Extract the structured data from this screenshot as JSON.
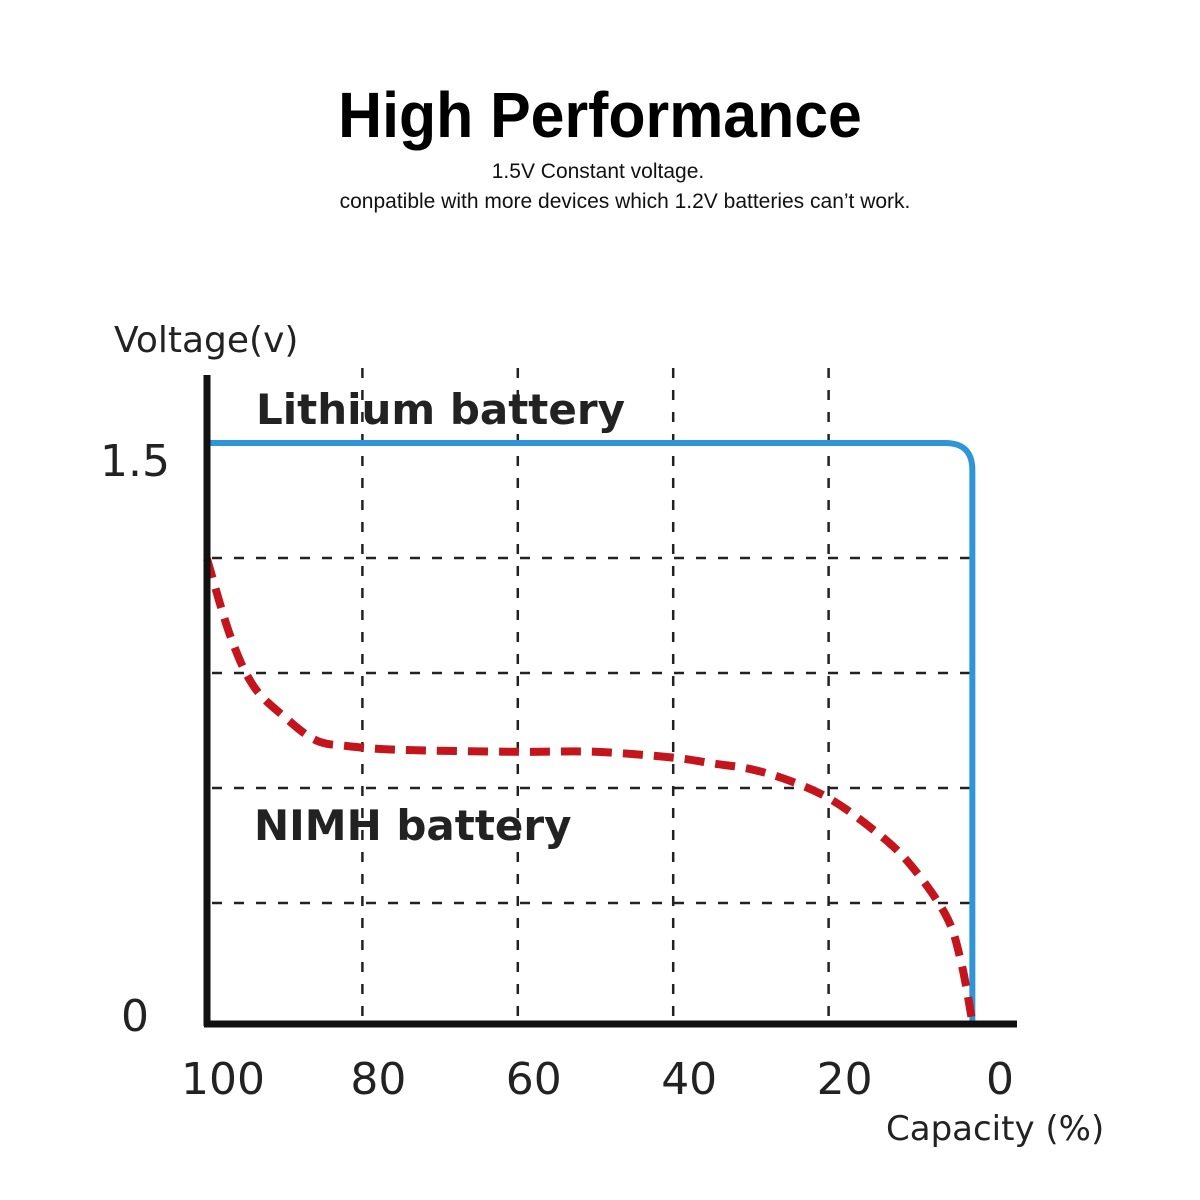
{
  "header": {
    "title": "High Performance",
    "line1": "1.5V Constant voltage.",
    "line2": "conpatible with more devices which 1.2V batteries can’t work."
  },
  "colors": {
    "lithium": "#2f95d6",
    "nimh": "#c4141c",
    "axis": "#111111",
    "grid": "#222222"
  },
  "chart_data": {
    "type": "line",
    "title": "",
    "xlabel": "Capacity (%)",
    "ylabel": "Voltage(v)",
    "x_ticks": [
      "100",
      "80",
      "60",
      "40",
      "20",
      "0"
    ],
    "y_ticks": [
      "1.5",
      "0"
    ],
    "xlim": [
      100,
      0
    ],
    "ylim": [
      0,
      1.5
    ],
    "grid": true,
    "series": [
      {
        "name": "Lithium battery",
        "style": "solid",
        "x": [
          100,
          80,
          60,
          40,
          20,
          5,
          3,
          2,
          1.5,
          1.5
        ],
        "y": [
          1.5,
          1.5,
          1.5,
          1.5,
          1.5,
          1.5,
          1.49,
          1.47,
          1.43,
          0.0
        ]
      },
      {
        "name": "NIMH battery",
        "style": "dashed",
        "x": [
          100,
          97,
          94,
          90,
          86,
          82,
          75,
          60,
          50,
          40,
          35,
          30,
          25,
          20,
          15,
          10,
          5,
          3,
          1.5
        ],
        "y": [
          1.2,
          1.0,
          0.87,
          0.79,
          0.73,
          0.715,
          0.705,
          0.7,
          0.7,
          0.685,
          0.67,
          0.655,
          0.625,
          0.58,
          0.51,
          0.42,
          0.28,
          0.16,
          0.0
        ]
      }
    ]
  }
}
